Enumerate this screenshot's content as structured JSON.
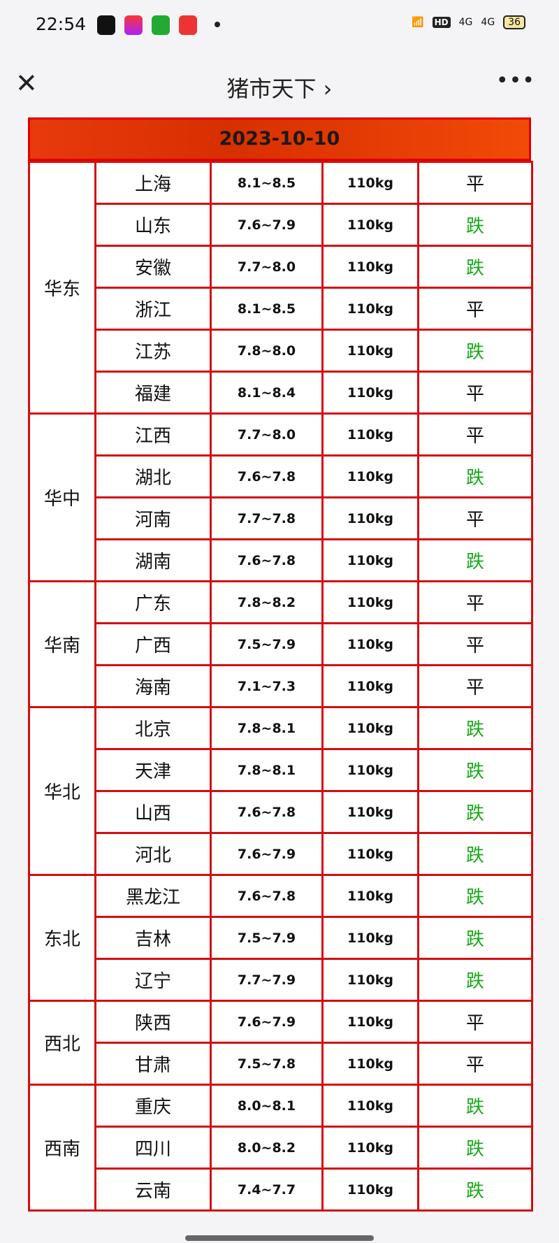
{
  "status_bar": {
    "time": "22:54",
    "network": "4G",
    "hd": "HD",
    "battery": "36"
  },
  "nav": {
    "title": "猪市天下 ›"
  },
  "table": {
    "date": "2023-10-10",
    "groups": [
      {
        "region": "华东",
        "rows": [
          {
            "province": "上海",
            "price": "8.1~8.5",
            "weight": "110kg",
            "trend": "平"
          },
          {
            "province": "山东",
            "price": "7.6~7.9",
            "weight": "110kg",
            "trend": "跌"
          },
          {
            "province": "安徽",
            "price": "7.7~8.0",
            "weight": "110kg",
            "trend": "跌"
          },
          {
            "province": "浙江",
            "price": "8.1~8.5",
            "weight": "110kg",
            "trend": "平"
          },
          {
            "province": "江苏",
            "price": "7.8~8.0",
            "weight": "110kg",
            "trend": "跌"
          },
          {
            "province": "福建",
            "price": "8.1~8.4",
            "weight": "110kg",
            "trend": "平"
          }
        ]
      },
      {
        "region": "华中",
        "rows": [
          {
            "province": "江西",
            "price": "7.7~8.0",
            "weight": "110kg",
            "trend": "平"
          },
          {
            "province": "湖北",
            "price": "7.6~7.8",
            "weight": "110kg",
            "trend": "跌"
          },
          {
            "province": "河南",
            "price": "7.7~7.8",
            "weight": "110kg",
            "trend": "平"
          },
          {
            "province": "湖南",
            "price": "7.6~7.8",
            "weight": "110kg",
            "trend": "跌"
          }
        ]
      },
      {
        "region": "华南",
        "rows": [
          {
            "province": "广东",
            "price": "7.8~8.2",
            "weight": "110kg",
            "trend": "平"
          },
          {
            "province": "广西",
            "price": "7.5~7.9",
            "weight": "110kg",
            "trend": "平"
          },
          {
            "province": "海南",
            "price": "7.1~7.3",
            "weight": "110kg",
            "trend": "平"
          }
        ]
      },
      {
        "region": "华北",
        "rows": [
          {
            "province": "北京",
            "price": "7.8~8.1",
            "weight": "110kg",
            "trend": "跌"
          },
          {
            "province": "天津",
            "price": "7.8~8.1",
            "weight": "110kg",
            "trend": "跌"
          },
          {
            "province": "山西",
            "price": "7.6~7.8",
            "weight": "110kg",
            "trend": "跌"
          },
          {
            "province": "河北",
            "price": "7.6~7.9",
            "weight": "110kg",
            "trend": "跌"
          }
        ]
      },
      {
        "region": "东北",
        "rows": [
          {
            "province": "黑龙江",
            "price": "7.6~7.8",
            "weight": "110kg",
            "trend": "跌"
          },
          {
            "province": "吉林",
            "price": "7.5~7.9",
            "weight": "110kg",
            "trend": "跌"
          },
          {
            "province": "辽宁",
            "price": "7.7~7.9",
            "weight": "110kg",
            "trend": "跌"
          }
        ]
      },
      {
        "region": "西北",
        "rows": [
          {
            "province": "陕西",
            "price": "7.6~7.9",
            "weight": "110kg",
            "trend": "平"
          },
          {
            "province": "甘肃",
            "price": "7.5~7.8",
            "weight": "110kg",
            "trend": "平"
          }
        ]
      },
      {
        "region": "西南",
        "rows": [
          {
            "province": "重庆",
            "price": "8.0~8.1",
            "weight": "110kg",
            "trend": "跌"
          },
          {
            "province": "四川",
            "price": "8.0~8.2",
            "weight": "110kg",
            "trend": "跌"
          },
          {
            "province": "云南",
            "price": "7.4~7.7",
            "weight": "110kg",
            "trend": "跌"
          }
        ]
      }
    ]
  },
  "colors": {
    "border": "#d40d10",
    "header": "#e83a0c",
    "down": "#1aa81a",
    "flat": "#111111"
  }
}
